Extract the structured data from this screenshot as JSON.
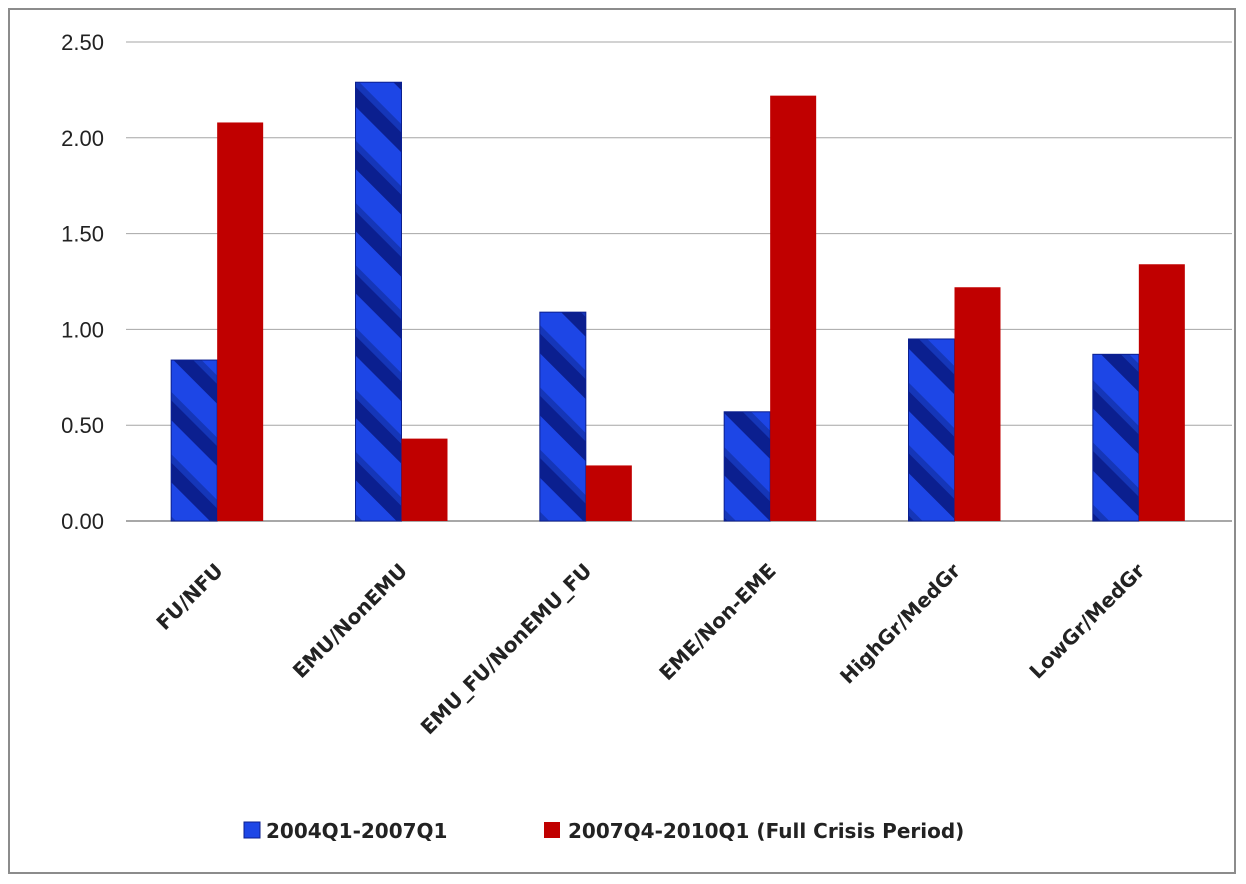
{
  "chart_data": {
    "type": "bar",
    "categories": [
      "FU/NFU",
      "EMU/NonEMU",
      "EMU_FU/NonEMU_FU",
      "EME/Non-EME",
      "HighGr/MedGr",
      "LowGr/MedGr"
    ],
    "series": [
      {
        "name": "2004Q1-2007Q1",
        "values": [
          0.84,
          2.29,
          1.09,
          0.57,
          0.95,
          0.87
        ]
      },
      {
        "name": "2007Q4-2010Q1 (Full Crisis Period)",
        "values": [
          2.08,
          0.43,
          0.29,
          2.22,
          1.22,
          1.34
        ]
      }
    ],
    "y_ticks": [
      "0.00",
      "0.50",
      "1.00",
      "1.50",
      "2.00",
      "2.50"
    ],
    "ylim": [
      0,
      2.5
    ],
    "grid": true,
    "legend_position": "bottom",
    "colors": [
      "#1a3fd6",
      "#c00000"
    ]
  }
}
